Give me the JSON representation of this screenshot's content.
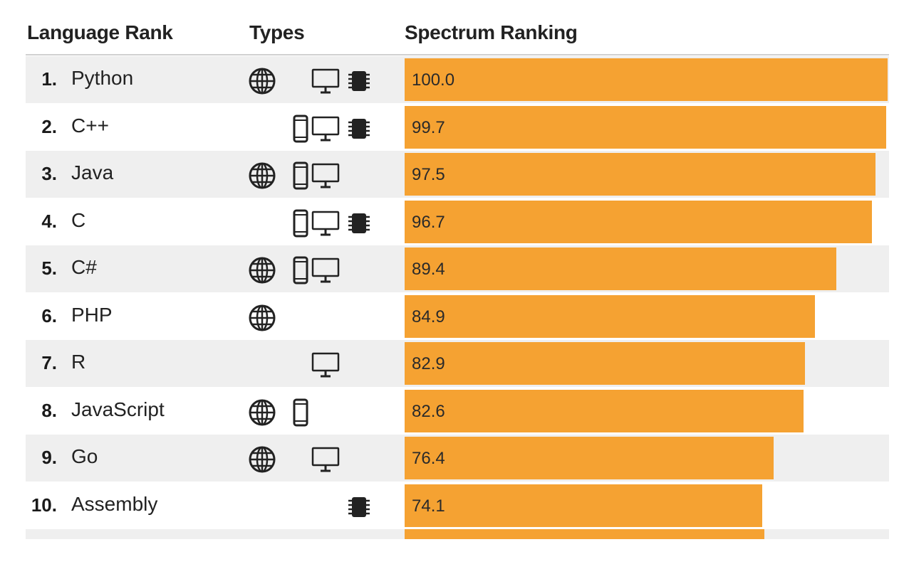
{
  "headers": {
    "rank": "Language Rank",
    "types": "Types",
    "spectrum": "Spectrum Ranking"
  },
  "colors": {
    "bar": "#f5a232",
    "row_shade": "#efefef"
  },
  "type_icons": {
    "web": "globe-icon",
    "mobile": "mobile-phone-icon",
    "enterprise": "desktop-monitor-icon",
    "embedded": "chip-icon"
  },
  "chart_data": {
    "type": "bar",
    "orientation": "horizontal",
    "categories": [
      "Python",
      "C++",
      "Java",
      "C",
      "C#",
      "PHP",
      "R",
      "JavaScript",
      "Go",
      "Assembly"
    ],
    "values": [
      100.0,
      99.7,
      97.5,
      96.7,
      89.4,
      84.9,
      82.9,
      82.6,
      76.4,
      74.1
    ],
    "title": "",
    "xlabel": "Spectrum Ranking",
    "ylabel": "Language Rank",
    "xlim": [
      0,
      100
    ],
    "grid": false,
    "legend": "none"
  },
  "rows": [
    {
      "rank": "1.",
      "name": "Python",
      "score": "100.0",
      "value": 100.0,
      "types": [
        "web",
        "enterprise",
        "embedded"
      ]
    },
    {
      "rank": "2.",
      "name": "C++",
      "score": "99.7",
      "value": 99.7,
      "types": [
        "mobile",
        "enterprise",
        "embedded"
      ]
    },
    {
      "rank": "3.",
      "name": "Java",
      "score": "97.5",
      "value": 97.5,
      "types": [
        "web",
        "mobile",
        "enterprise"
      ]
    },
    {
      "rank": "4.",
      "name": "C",
      "score": "96.7",
      "value": 96.7,
      "types": [
        "mobile",
        "enterprise",
        "embedded"
      ]
    },
    {
      "rank": "5.",
      "name": "C#",
      "score": "89.4",
      "value": 89.4,
      "types": [
        "web",
        "mobile",
        "enterprise"
      ]
    },
    {
      "rank": "6.",
      "name": "PHP",
      "score": "84.9",
      "value": 84.9,
      "types": [
        "web"
      ]
    },
    {
      "rank": "7.",
      "name": "R",
      "score": "82.9",
      "value": 82.9,
      "types": [
        "enterprise"
      ]
    },
    {
      "rank": "8.",
      "name": "JavaScript",
      "score": "82.6",
      "value": 82.6,
      "types": [
        "web",
        "mobile"
      ]
    },
    {
      "rank": "9.",
      "name": "Go",
      "score": "76.4",
      "value": 76.4,
      "types": [
        "web",
        "enterprise"
      ]
    },
    {
      "rank": "10.",
      "name": "Assembly",
      "score": "74.1",
      "value": 74.1,
      "types": [
        "embedded"
      ]
    }
  ]
}
